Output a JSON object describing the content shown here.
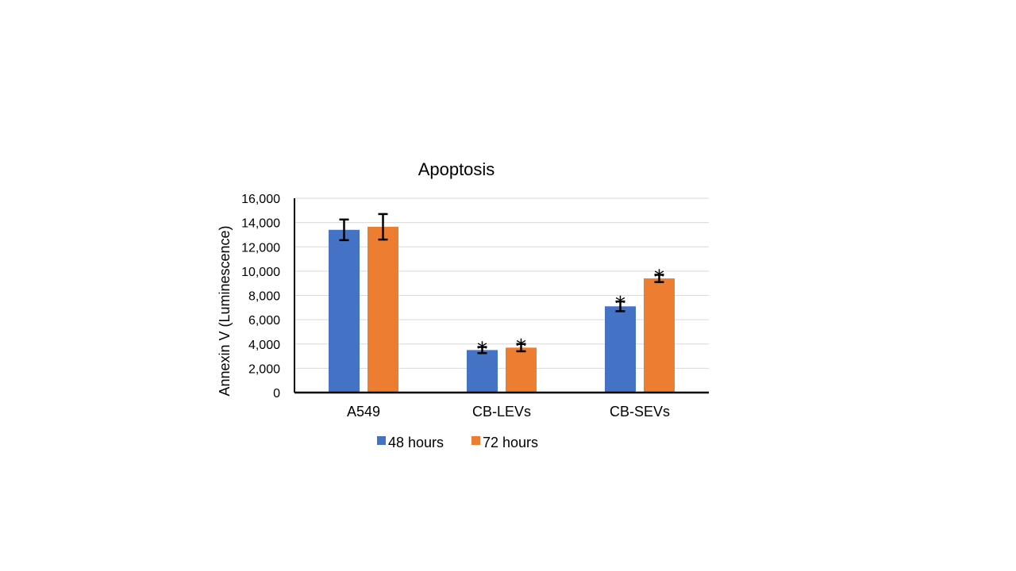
{
  "colors": {
    "series_48h": "#4472c4",
    "series_72h": "#ed7d31",
    "gridline": "#d9d9d9",
    "axis": "#000000"
  },
  "chart_data": {
    "type": "bar",
    "title": "Apoptosis",
    "xlabel": "",
    "ylabel": "Annexin V (Luminescence)",
    "ylim": [
      0,
      16000
    ],
    "yticks": [
      0,
      2000,
      4000,
      6000,
      8000,
      10000,
      12000,
      14000,
      16000
    ],
    "ytick_labels": [
      "0",
      "2,000",
      "4,000",
      "6,000",
      "8,000",
      "10,000",
      "12,000",
      "14,000",
      "16,000"
    ],
    "grid": true,
    "legend_position": "bottom",
    "categories": [
      "A549",
      "CB-LEVs",
      "CB-SEVs"
    ],
    "series": [
      {
        "name": "48 hours",
        "color": "#4472c4",
        "values": [
          13400,
          3500,
          7100
        ],
        "errors": [
          850,
          250,
          400
        ],
        "significance": [
          "",
          "*",
          "*"
        ]
      },
      {
        "name": "72 hours",
        "color": "#ed7d31",
        "values": [
          13650,
          3700,
          9400
        ],
        "errors": [
          1050,
          300,
          300
        ],
        "significance": [
          "",
          "*",
          "*"
        ]
      }
    ]
  }
}
